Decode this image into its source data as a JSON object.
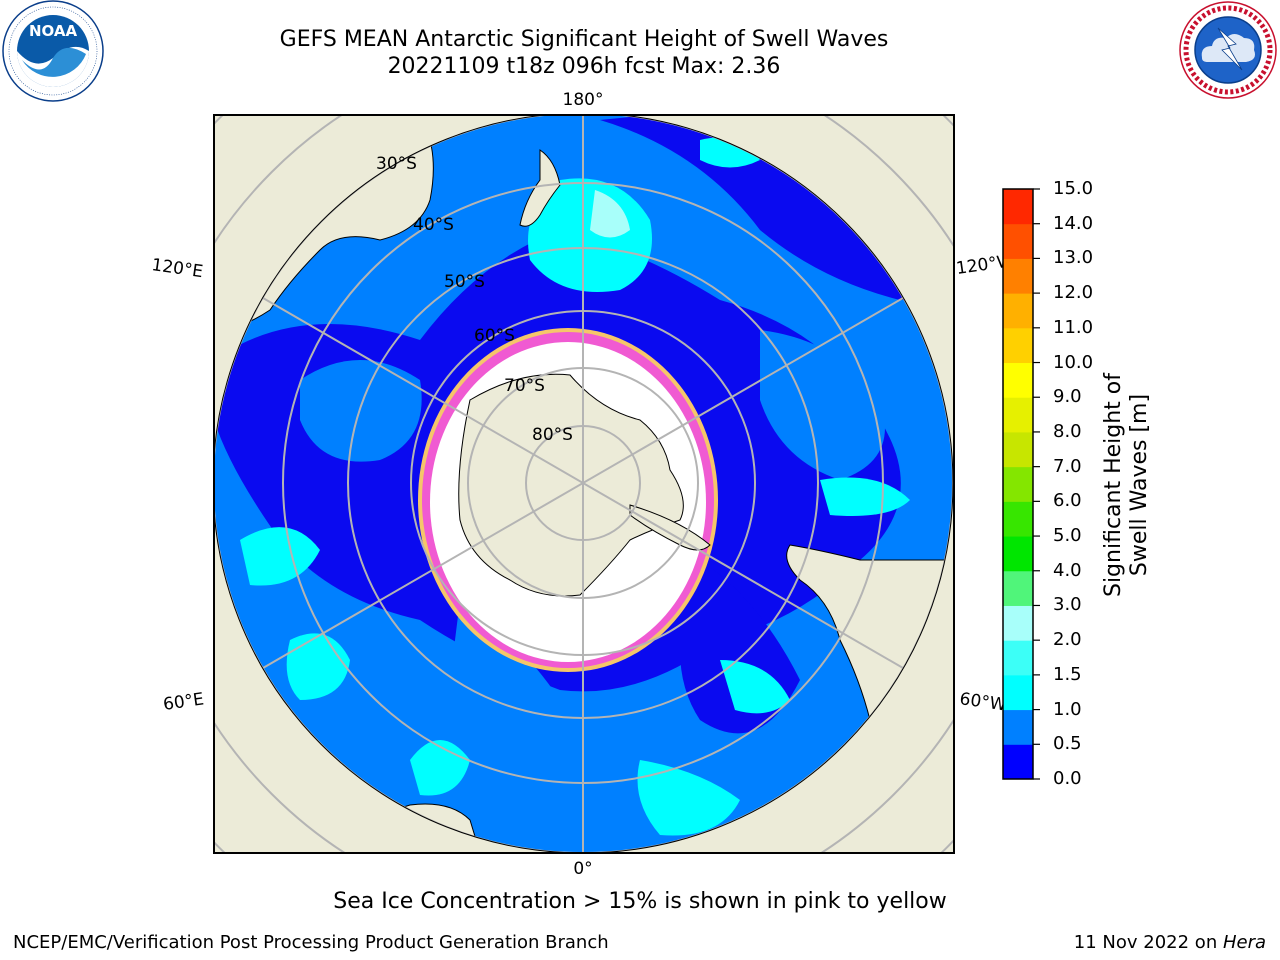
{
  "header": {
    "title_line1": "GEFS MEAN Antarctic Significant Height of Swell Waves",
    "title_line2": "20221109 t18z 096h fcst   Max: 2.36"
  },
  "logos": {
    "noaa": {
      "text": "NOAA",
      "ring_text": "NATIONAL OCEANIC AND ATMOSPHERIC ADMINISTRATION · U.S. DEPARTMENT OF COMMERCE"
    },
    "nws": {
      "ring_text": "NATIONAL WEATHER SERVICE"
    }
  },
  "map": {
    "projection": "south polar stereographic",
    "longitude_labels": {
      "top": "180°",
      "bottom": "0°",
      "upper_left": "120°E",
      "upper_right": "120°W",
      "lower_left": "60°E",
      "lower_right": "60°W"
    },
    "latitude_labels": [
      "30°S",
      "40°S",
      "50°S",
      "60°S",
      "70°S",
      "80°S"
    ],
    "colors": {
      "land": "#ecebd8",
      "ice": "#ffffff",
      "ice_edge_pink": "#f05ad2",
      "ice_edge_yellow": "#f5c66a"
    }
  },
  "colorbar": {
    "label": "Significant Height of Swell Waves [m]",
    "ticks": [
      "0.0",
      "0.5",
      "1.0",
      "1.5",
      "2.0",
      "3.0",
      "4.0",
      "5.0",
      "6.0",
      "7.0",
      "8.0",
      "9.0",
      "10.0",
      "11.0",
      "12.0",
      "13.0",
      "14.0",
      "15.0"
    ],
    "colors": [
      "#0000ff",
      "#0080ff",
      "#00ffff",
      "#3cfff7",
      "#a8fffa",
      "#50f57a",
      "#00e600",
      "#37e600",
      "#84e600",
      "#c7e600",
      "#e6f000",
      "#ffff00",
      "#ffd000",
      "#ffb000",
      "#ff8000",
      "#ff5000",
      "#ff2800",
      "#ff0000"
    ]
  },
  "footer": {
    "note": "Sea Ice Concentration > 15% is shown in pink to yellow",
    "left": "NCEP/EMC/Verification Post Processing Product Generation Branch",
    "right_prefix": "11 Nov 2022 on ",
    "right_host": "Hera"
  }
}
